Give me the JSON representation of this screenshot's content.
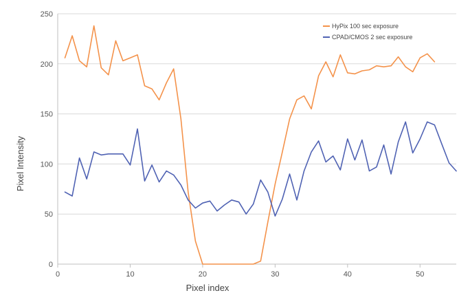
{
  "chart_data": {
    "type": "line",
    "title": "",
    "xlabel": "Pixel index",
    "ylabel": "Pixel Intensity",
    "xlim": [
      0,
      55
    ],
    "ylim": [
      0,
      250
    ],
    "xticks": [
      0,
      10,
      20,
      30,
      40,
      50
    ],
    "yticks": [
      0,
      50,
      100,
      150,
      200,
      250
    ],
    "grid": "horizontal",
    "legend_position": "top-right",
    "series": [
      {
        "name": "HyPix 100 sec exposure",
        "color": "#f4924a",
        "x": [
          1,
          2,
          3,
          4,
          5,
          6,
          7,
          8,
          9,
          10,
          11,
          12,
          13,
          14,
          15,
          16,
          17,
          18,
          19,
          20,
          21,
          22,
          23,
          24,
          25,
          26,
          27,
          28,
          29,
          30,
          31,
          32,
          33,
          34,
          35,
          36,
          37,
          38,
          39,
          40,
          41,
          42,
          43,
          44,
          45,
          46,
          47,
          48,
          49,
          50,
          51,
          52
        ],
        "values": [
          206,
          228,
          203,
          197,
          238,
          196,
          189,
          223,
          203,
          206,
          209,
          178,
          175,
          164,
          181,
          195,
          145,
          72,
          23,
          0,
          0,
          0,
          0,
          0,
          0,
          0,
          0,
          3,
          42,
          80,
          112,
          145,
          164,
          168,
          155,
          188,
          202,
          187,
          209,
          191,
          190,
          193,
          194,
          198,
          197,
          198,
          207,
          197,
          192,
          206,
          210,
          202
        ]
      },
      {
        "name": "CPAD/CMOS 2 sec exposure",
        "color": "#4f62b3",
        "x": [
          1,
          2,
          3,
          4,
          5,
          6,
          7,
          8,
          9,
          10,
          11,
          12,
          13,
          14,
          15,
          16,
          17,
          18,
          19,
          20,
          21,
          22,
          23,
          24,
          25,
          26,
          27,
          28,
          29,
          30,
          31,
          32,
          33,
          34,
          35,
          36,
          37,
          38,
          39,
          40,
          41,
          42,
          43,
          44,
          45,
          46,
          47,
          48,
          49,
          50,
          51,
          52,
          53,
          54,
          55
        ],
        "values": [
          72,
          68,
          106,
          85,
          112,
          109,
          110,
          110,
          110,
          99,
          135,
          83,
          99,
          82,
          93,
          89,
          79,
          64,
          56,
          61,
          63,
          53,
          59,
          64,
          62,
          50,
          60,
          84,
          72,
          48,
          65,
          90,
          64,
          93,
          112,
          123,
          102,
          108,
          94,
          125,
          104,
          124,
          93,
          97,
          119,
          90,
          122,
          142,
          111,
          125,
          142,
          139,
          120,
          101,
          93
        ]
      }
    ]
  }
}
